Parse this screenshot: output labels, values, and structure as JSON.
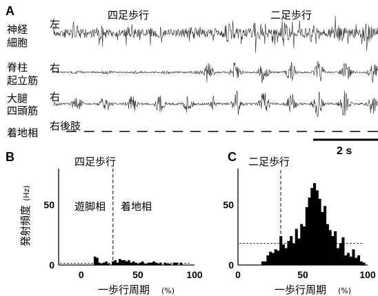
{
  "panel_a": {
    "label": "A",
    "phase_quadruped": "四足歩行",
    "phase_bipedal": "二足歩行",
    "traces": [
      {
        "name": "神経細胞",
        "name_line1": "神経",
        "name_line2": "細胞",
        "side": "左"
      },
      {
        "name": "脊柱起立筋",
        "name_line1": "脊柱",
        "name_line2": "起立筋",
        "side": "右"
      },
      {
        "name": "大腿四頭筋",
        "name_line1": "大腿",
        "name_line2": "四頭筋",
        "side": "右"
      }
    ],
    "stance_label": "着地相",
    "stance_side": "右後肢",
    "scale_bar": "2 s"
  },
  "chart_data": [
    {
      "panel": "B",
      "type": "bar",
      "title": "四足歩行",
      "xlabel": "一歩行周期",
      "xunit": "(%)",
      "ylabel": "発射頻度",
      "yunit": "(Hz)",
      "xlim": [
        -20,
        100
      ],
      "ylim": [
        0,
        80
      ],
      "xticks": [
        "0",
        "50",
        "100"
      ],
      "yticks": [
        "0",
        "50"
      ],
      "phase_line_x": 28,
      "phase_labels": [
        "遊脚相",
        "着地相"
      ],
      "baseline_hz": 1.5,
      "bin_width": 2,
      "x": [
        12,
        14,
        16,
        18,
        20,
        22,
        24,
        26,
        28,
        30,
        32,
        34,
        36,
        38,
        40,
        42,
        44,
        46,
        48,
        50,
        52,
        54,
        56,
        58,
        60,
        62,
        64,
        66,
        68,
        70,
        72,
        74,
        76,
        78,
        80,
        82,
        84,
        86,
        88,
        90
      ],
      "values": [
        7,
        6,
        2,
        1,
        2,
        3,
        1,
        0,
        3,
        4,
        2,
        5,
        4,
        4,
        3,
        4,
        2,
        3,
        2,
        1,
        2,
        3,
        1,
        1,
        2,
        2,
        3,
        2,
        1,
        2,
        0,
        2,
        1,
        1,
        0,
        2,
        2,
        0,
        2,
        0
      ]
    },
    {
      "panel": "C",
      "type": "bar",
      "title": "二足歩行",
      "xlabel": "一歩行周期",
      "xunit": "(%)",
      "ylabel": "",
      "xlim": [
        0,
        100
      ],
      "ylim": [
        0,
        80
      ],
      "xticks": [
        "0",
        "50",
        "100"
      ],
      "yticks": [
        "0",
        "50"
      ],
      "phase_line_x": 33,
      "baseline_hz": 18,
      "bin_width": 2,
      "x": [
        19,
        21,
        23,
        25,
        27,
        29,
        31,
        33,
        35,
        37,
        39,
        41,
        43,
        45,
        47,
        49,
        51,
        53,
        55,
        57,
        59,
        61,
        63,
        65,
        67,
        69,
        71,
        73,
        75,
        77,
        79,
        81,
        83,
        85,
        87,
        89,
        91,
        93,
        95,
        97
      ],
      "values": [
        3,
        3,
        8,
        11,
        10,
        13,
        12,
        24,
        17,
        14,
        20,
        24,
        18,
        30,
        22,
        34,
        32,
        48,
        56,
        64,
        68,
        62,
        55,
        44,
        49,
        34,
        29,
        24,
        28,
        14,
        18,
        23,
        8,
        10,
        7,
        13,
        6,
        8,
        3,
        2
      ]
    }
  ]
}
